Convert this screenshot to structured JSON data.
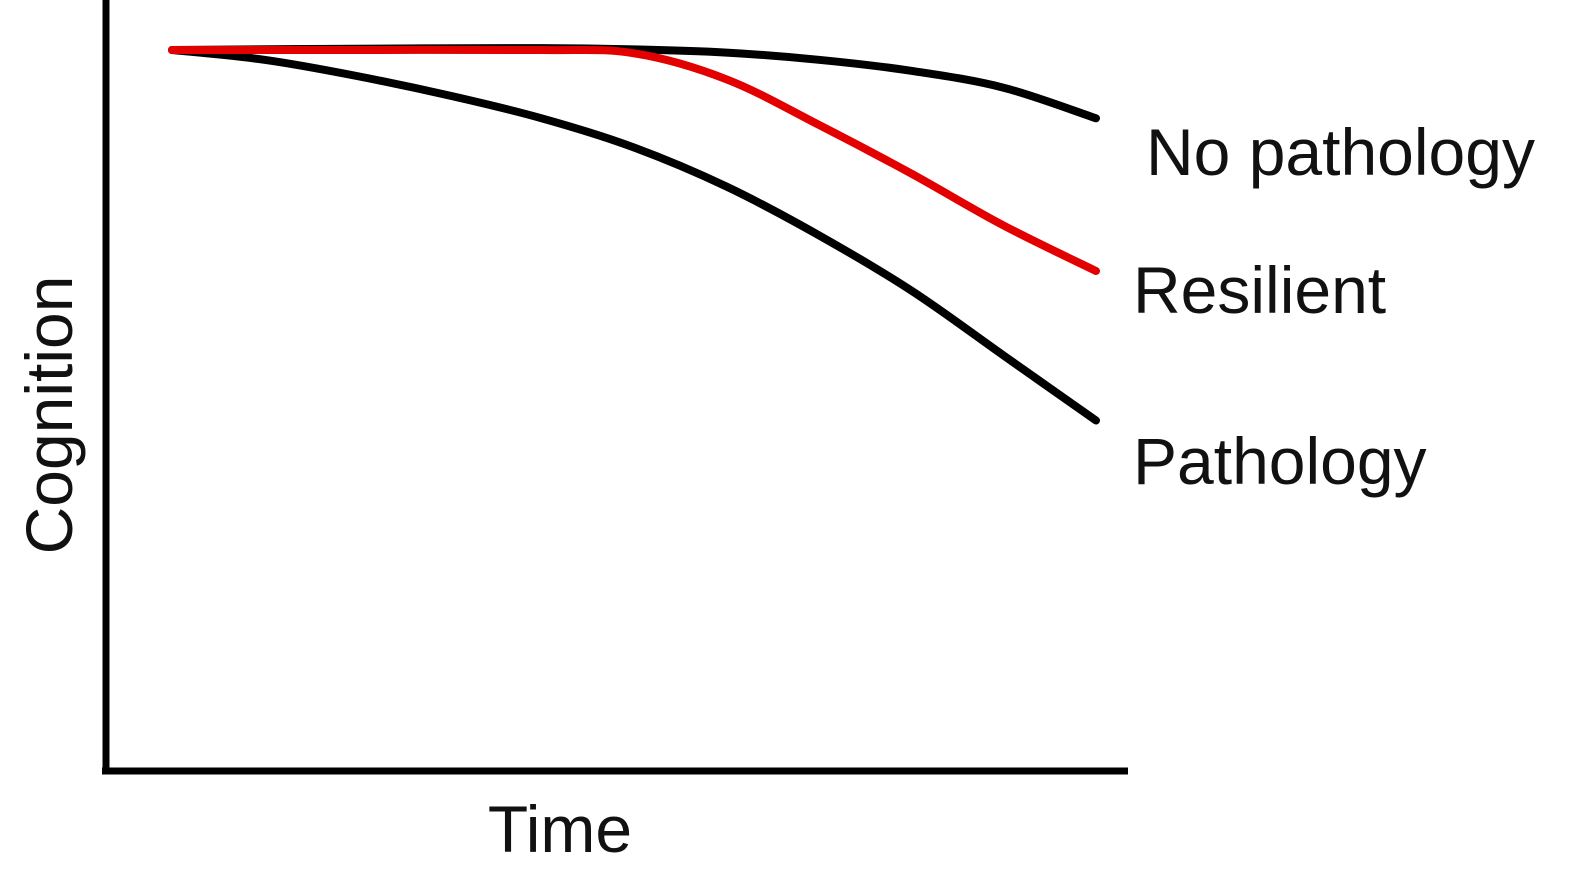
{
  "chart_data": {
    "type": "line",
    "xlabel": "Time",
    "ylabel": "Cognition",
    "xlim": [
      0,
      10
    ],
    "ylim": [
      0,
      10
    ],
    "grid": false,
    "legend": "direct labels at right end of each line",
    "series": [
      {
        "name": "No pathology",
        "color": "#000000",
        "x": [
          0,
          2,
          4,
          5,
          6,
          7,
          8,
          9,
          10
        ],
        "y": [
          10,
          10.02,
          10.03,
          10.01,
          9.96,
          9.85,
          9.68,
          9.42,
          8.95
        ]
      },
      {
        "name": "Resilient",
        "color": "#e30000",
        "x": [
          0,
          2,
          4,
          5,
          6,
          7,
          8,
          9,
          10
        ],
        "y": [
          10,
          10.0,
          10.0,
          9.95,
          9.55,
          8.85,
          8.1,
          7.3,
          6.6
        ]
      },
      {
        "name": "Pathology",
        "color": "#000000",
        "x": [
          0,
          1,
          2,
          3,
          4,
          5,
          6,
          7,
          8,
          9,
          10
        ],
        "y": [
          10,
          9.85,
          9.6,
          9.3,
          8.95,
          8.5,
          7.9,
          7.15,
          6.3,
          5.3,
          4.3
        ]
      }
    ]
  }
}
